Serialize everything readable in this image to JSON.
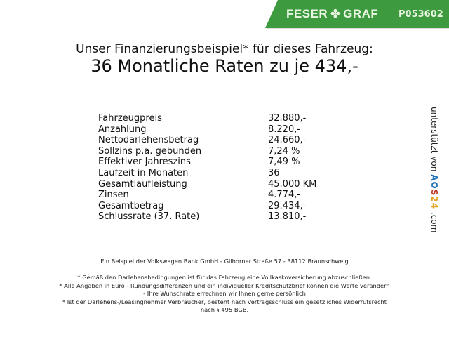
{
  "header": {
    "brand": "FESER",
    "brand2": "GRAF",
    "product_id": "P053602",
    "color": "#3d9a3f"
  },
  "title": {
    "line1": "Unser Finanzierungsbeispiel* für dieses Fahrzeug:",
    "line2": "36 Monatliche Raten zu je 434,-"
  },
  "rows": [
    {
      "label": "Fahrzeugpreis",
      "value": "32.880,-"
    },
    {
      "label": "Anzahlung",
      "value": "8.220,-"
    },
    {
      "label": "Nettodarlehensbetrag",
      "value": "24.660,-"
    },
    {
      "label": "Sollzins p.a. gebunden",
      "value": "7,24 %"
    },
    {
      "label": "Effektiver Jahreszins",
      "value": "7,49 %"
    },
    {
      "label": "Laufzeit in Monaten",
      "value": "36"
    },
    {
      "label": "Gesamtlaufleistung",
      "value": "45.000 KM"
    },
    {
      "label": "Zinsen",
      "value": "4.774,-"
    },
    {
      "label": "Gesamtbetrag",
      "value": "29.434,-"
    },
    {
      "label": "Schlussrate (37. Rate)",
      "value": "13.810,-"
    }
  ],
  "side": {
    "prefix": "unterstützt von",
    "brand": "AOS24",
    "suffix": ".com"
  },
  "footer": {
    "bank": "Ein Beispiel der Volkswagen Bank GmbH - Gilhorner Straße 57 - 38112 Braunschweig",
    "note1": "* Gemäß den Darlehensbedingungen ist für das Fahrzeug eine Vollkaskoversicherung abzuschließen.",
    "note2a": "* Alle Angaben in Euro - Rundungsdifferenzen und ein individueller Kreditschutzbrief können die Werte verändern",
    "note2b": "- Ihre Wunschrate errechnen wir Ihnen gerne persönlich",
    "note3a": "* Ist der Darlehens-/Leasingnehmer Verbraucher, besteht nach Vertragsschluss ein gesetzliches Widerrufsrecht",
    "note3b": "nach § 495 BGB."
  }
}
